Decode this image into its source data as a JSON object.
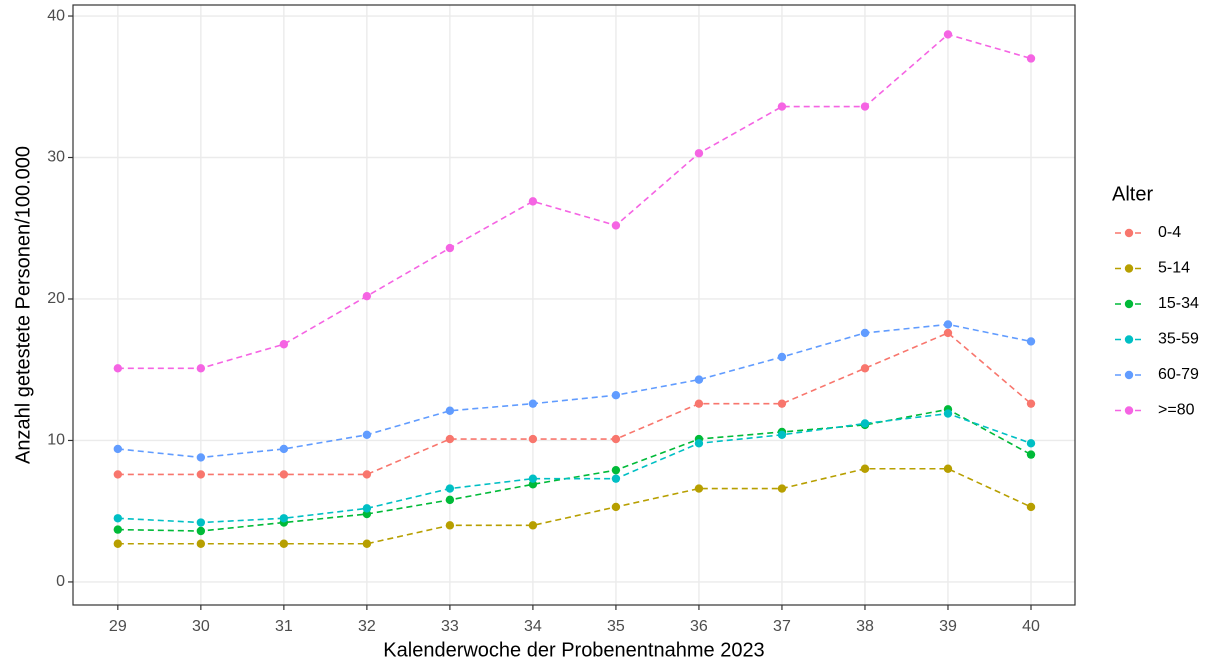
{
  "chart_data": {
    "type": "line",
    "x_label": "Kalenderwoche der Probenentnahme 2023",
    "y_label": "Anzahl getestete Personen/100.000",
    "legend_title": "Alter",
    "legend_position": "right",
    "grid": true,
    "x": [
      29,
      30,
      31,
      32,
      33,
      34,
      35,
      36,
      37,
      38,
      39,
      40
    ],
    "xlim": [
      28.46,
      40.53
    ],
    "xticks": [
      29,
      30,
      31,
      32,
      33,
      34,
      35,
      36,
      37,
      38,
      39,
      40
    ],
    "ylim": [
      -1.63,
      40.78
    ],
    "yticks": [
      0,
      10,
      20,
      30,
      40
    ],
    "series": [
      {
        "name": "0-4",
        "color": "#F8766D",
        "values": [
          7.6,
          7.6,
          7.6,
          7.6,
          10.1,
          10.1,
          10.1,
          12.6,
          12.6,
          15.1,
          17.6,
          12.6
        ]
      },
      {
        "name": "5-14",
        "color": "#B79F00",
        "values": [
          2.7,
          2.7,
          2.7,
          2.7,
          4.0,
          4.0,
          5.3,
          6.6,
          6.6,
          8.0,
          8.0,
          5.3
        ]
      },
      {
        "name": "15-34",
        "color": "#00BA38",
        "values": [
          3.7,
          3.6,
          4.2,
          4.8,
          5.8,
          6.9,
          7.9,
          10.1,
          10.6,
          11.1,
          12.2,
          9.0
        ]
      },
      {
        "name": "35-59",
        "color": "#00BFC4",
        "values": [
          4.5,
          4.2,
          4.5,
          5.2,
          6.6,
          7.3,
          7.3,
          9.8,
          10.4,
          11.2,
          11.9,
          9.8
        ]
      },
      {
        "name": "60-79",
        "color": "#619CFF",
        "values": [
          9.4,
          8.8,
          9.4,
          10.4,
          12.1,
          12.6,
          13.2,
          14.3,
          15.9,
          17.6,
          18.2,
          17.0
        ]
      },
      {
        "name": ">=80",
        "color": "#F564E3",
        "values": [
          15.1,
          15.1,
          16.8,
          20.2,
          23.6,
          26.9,
          25.2,
          30.3,
          33.6,
          33.6,
          38.7,
          37.0
        ]
      }
    ]
  }
}
